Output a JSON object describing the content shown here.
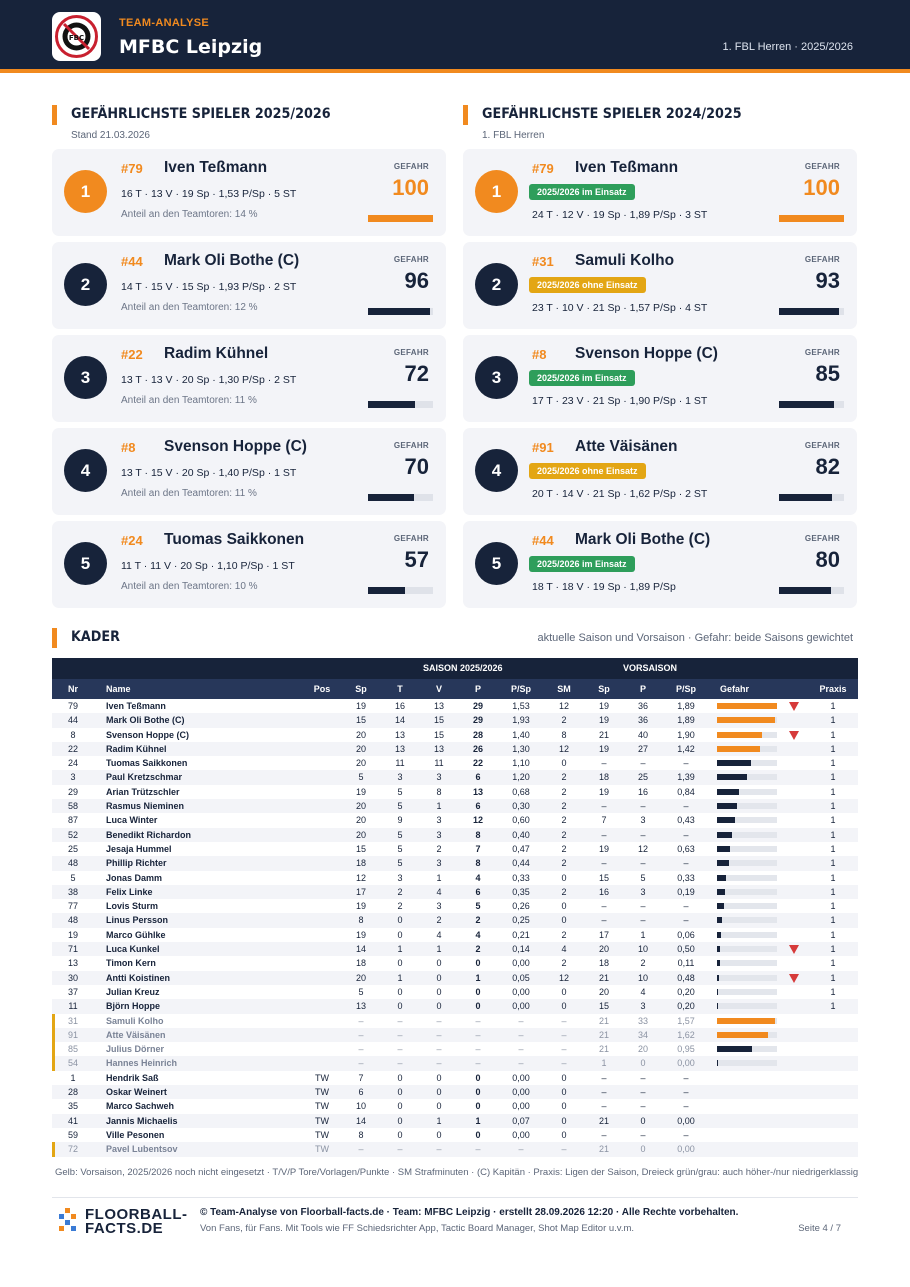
{
  "header": {
    "subtitle": "TEAM-ANALYSE",
    "team": "MFBC Leipzig",
    "league": "1. FBL Herren · 2025/2026",
    "logo_text": "MFBC"
  },
  "left_section": {
    "title": "GEFÄHRLICHSTE SPIELER 2025/2026",
    "subtitle": "Stand 21.03.2026"
  },
  "right_section": {
    "title": "GEFÄHRLICHSTE SPIELER 2024/2025",
    "subtitle": "1. FBL Herren"
  },
  "danger_label": "GEFAHR",
  "left_cards": [
    {
      "rank": "1",
      "num": "#79",
      "name": "Iven Teßmann",
      "stats": "16 T · 13 V · 19 Sp · 1,53 P/Sp · 5 ST",
      "share": "Anteil an den Teamtoren: 14 %",
      "danger": "100",
      "fill": 1.0
    },
    {
      "rank": "2",
      "num": "#44",
      "name": "Mark Oli Bothe (C)",
      "stats": "14 T · 15 V · 15 Sp · 1,93 P/Sp · 2 ST",
      "share": "Anteil an den Teamtoren: 12 %",
      "danger": "96",
      "fill": 0.96
    },
    {
      "rank": "3",
      "num": "#22",
      "name": "Radim Kühnel",
      "stats": "13 T · 13 V · 20 Sp · 1,30 P/Sp · 2 ST",
      "share": "Anteil an den Teamtoren: 11 %",
      "danger": "72",
      "fill": 0.72
    },
    {
      "rank": "4",
      "num": "#8",
      "name": "Svenson Hoppe (C)",
      "stats": "13 T · 15 V · 20 Sp · 1,40 P/Sp · 1 ST",
      "share": "Anteil an den Teamtoren: 11 %",
      "danger": "70",
      "fill": 0.7
    },
    {
      "rank": "5",
      "num": "#24",
      "name": "Tuomas Saikkonen",
      "stats": "11 T · 11 V · 20 Sp · 1,10 P/Sp · 1 ST",
      "share": "Anteil an den Teamtoren: 10 %",
      "danger": "57",
      "fill": 0.57
    }
  ],
  "right_cards": [
    {
      "rank": "1",
      "num": "#79",
      "name": "Iven Teßmann",
      "badge": "2025/2026 im Einsatz",
      "badge_color": "green",
      "stats": "24 T · 12 V · 19 Sp · 1,89 P/Sp · 3 ST",
      "danger": "100",
      "fill": 1.0
    },
    {
      "rank": "2",
      "num": "#31",
      "name": "Samuli Kolho",
      "badge": "2025/2026 ohne Einsatz",
      "badge_color": "amber",
      "stats": "23 T · 10 V · 21 Sp · 1,57 P/Sp · 4 ST",
      "danger": "93",
      "fill": 0.93
    },
    {
      "rank": "3",
      "num": "#8",
      "name": "Svenson Hoppe (C)",
      "badge": "2025/2026 im Einsatz",
      "badge_color": "green",
      "stats": "17 T · 23 V · 21 Sp · 1,90 P/Sp · 1 ST",
      "danger": "85",
      "fill": 0.85
    },
    {
      "rank": "4",
      "num": "#91",
      "name": "Atte Väisänen",
      "badge": "2025/2026 ohne Einsatz",
      "badge_color": "amber",
      "stats": "20 T · 14 V · 21 Sp · 1,62 P/Sp · 2 ST",
      "danger": "82",
      "fill": 0.82
    },
    {
      "rank": "5",
      "num": "#44",
      "name": "Mark Oli Bothe (C)",
      "badge": "2025/2026 im Einsatz",
      "badge_color": "green",
      "stats": "18 T · 18 V · 19 Sp · 1,89 P/Sp",
      "danger": "80",
      "fill": 0.8
    }
  ],
  "kader": {
    "title": "KADER",
    "note": "aktuelle Saison und Vorsaison · Gefahr: beide Saisons gewichtet",
    "group_season": "SAISON 2025/2026",
    "group_prev": "VORSAISON",
    "columns": [
      "Nr",
      "Name",
      "Pos",
      "Sp",
      "T",
      "V",
      "P",
      "P/Sp",
      "SM",
      "Sp",
      "P",
      "P/Sp",
      "Gefahr",
      "Praxis"
    ],
    "rows": [
      {
        "nr": "79",
        "name": "Iven Teßmann",
        "pos": "",
        "sp": "19",
        "t": "16",
        "v": "13",
        "p": "29",
        "psp": "1,53",
        "sm": "12",
        "vsp": "19",
        "vp": "36",
        "vpsp": "1,89",
        "g": 1.0,
        "go": true,
        "tri": true,
        "praxis": "1",
        "vs": false
      },
      {
        "nr": "44",
        "name": "Mark Oli Bothe (C)",
        "pos": "",
        "sp": "15",
        "t": "14",
        "v": "15",
        "p": "29",
        "psp": "1,93",
        "sm": "2",
        "vsp": "19",
        "vp": "36",
        "vpsp": "1,89",
        "g": 0.96,
        "go": true,
        "tri": false,
        "praxis": "1",
        "vs": false
      },
      {
        "nr": "8",
        "name": "Svenson Hoppe (C)",
        "pos": "",
        "sp": "20",
        "t": "13",
        "v": "15",
        "p": "28",
        "psp": "1,40",
        "sm": "8",
        "vsp": "21",
        "vp": "40",
        "vpsp": "1,90",
        "g": 0.75,
        "go": true,
        "tri": true,
        "praxis": "1",
        "vs": false
      },
      {
        "nr": "22",
        "name": "Radim Kühnel",
        "pos": "",
        "sp": "20",
        "t": "13",
        "v": "13",
        "p": "26",
        "psp": "1,30",
        "sm": "12",
        "vsp": "19",
        "vp": "27",
        "vpsp": "1,42",
        "g": 0.72,
        "go": true,
        "tri": false,
        "praxis": "1",
        "vs": false
      },
      {
        "nr": "24",
        "name": "Tuomas Saikkonen",
        "pos": "",
        "sp": "20",
        "t": "11",
        "v": "11",
        "p": "22",
        "psp": "1,10",
        "sm": "0",
        "vsp": "–",
        "vp": "–",
        "vpsp": "–",
        "g": 0.57,
        "go": false,
        "tri": false,
        "praxis": "1",
        "vs": false
      },
      {
        "nr": "3",
        "name": "Paul Kretzschmar",
        "pos": "",
        "sp": "5",
        "t": "3",
        "v": "3",
        "p": "6",
        "psp": "1,20",
        "sm": "2",
        "vsp": "18",
        "vp": "25",
        "vpsp": "1,39",
        "g": 0.5,
        "go": false,
        "tri": false,
        "praxis": "1",
        "vs": false
      },
      {
        "nr": "29",
        "name": "Arian Trützschler",
        "pos": "",
        "sp": "19",
        "t": "5",
        "v": "8",
        "p": "13",
        "psp": "0,68",
        "sm": "2",
        "vsp": "19",
        "vp": "16",
        "vpsp": "0,84",
        "g": 0.37,
        "go": false,
        "tri": false,
        "praxis": "1",
        "vs": false
      },
      {
        "nr": "58",
        "name": "Rasmus Nieminen",
        "pos": "",
        "sp": "20",
        "t": "5",
        "v": "1",
        "p": "6",
        "psp": "0,30",
        "sm": "2",
        "vsp": "–",
        "vp": "–",
        "vpsp": "–",
        "g": 0.33,
        "go": false,
        "tri": false,
        "praxis": "1",
        "vs": false
      },
      {
        "nr": "87",
        "name": "Luca Winter",
        "pos": "",
        "sp": "20",
        "t": "9",
        "v": "3",
        "p": "12",
        "psp": "0,60",
        "sm": "2",
        "vsp": "7",
        "vp": "3",
        "vpsp": "0,43",
        "g": 0.3,
        "go": false,
        "tri": false,
        "praxis": "1",
        "vs": false
      },
      {
        "nr": "52",
        "name": "Benedikt Richardon",
        "pos": "",
        "sp": "20",
        "t": "5",
        "v": "3",
        "p": "8",
        "psp": "0,40",
        "sm": "2",
        "vsp": "–",
        "vp": "–",
        "vpsp": "–",
        "g": 0.25,
        "go": false,
        "tri": false,
        "praxis": "1",
        "vs": false
      },
      {
        "nr": "25",
        "name": "Jesaja Hummel",
        "pos": "",
        "sp": "15",
        "t": "5",
        "v": "2",
        "p": "7",
        "psp": "0,47",
        "sm": "2",
        "vsp": "19",
        "vp": "12",
        "vpsp": "0,63",
        "g": 0.22,
        "go": false,
        "tri": false,
        "praxis": "1",
        "vs": false
      },
      {
        "nr": "48",
        "name": "Phillip Richter",
        "pos": "",
        "sp": "18",
        "t": "5",
        "v": "3",
        "p": "8",
        "psp": "0,44",
        "sm": "2",
        "vsp": "–",
        "vp": "–",
        "vpsp": "–",
        "g": 0.2,
        "go": false,
        "tri": false,
        "praxis": "1",
        "vs": false
      },
      {
        "nr": "5",
        "name": "Jonas Damm",
        "pos": "",
        "sp": "12",
        "t": "3",
        "v": "1",
        "p": "4",
        "psp": "0,33",
        "sm": "0",
        "vsp": "15",
        "vp": "5",
        "vpsp": "0,33",
        "g": 0.15,
        "go": false,
        "tri": false,
        "praxis": "1",
        "vs": false
      },
      {
        "nr": "38",
        "name": "Felix Linke",
        "pos": "",
        "sp": "17",
        "t": "2",
        "v": "4",
        "p": "6",
        "psp": "0,35",
        "sm": "2",
        "vsp": "16",
        "vp": "3",
        "vpsp": "0,19",
        "g": 0.14,
        "go": false,
        "tri": false,
        "praxis": "1",
        "vs": false
      },
      {
        "nr": "77",
        "name": "Lovis Sturm",
        "pos": "",
        "sp": "19",
        "t": "2",
        "v": "3",
        "p": "5",
        "psp": "0,26",
        "sm": "0",
        "vsp": "–",
        "vp": "–",
        "vpsp": "–",
        "g": 0.11,
        "go": false,
        "tri": false,
        "praxis": "1",
        "vs": false
      },
      {
        "nr": "48",
        "name": "Linus Persson",
        "pos": "",
        "sp": "8",
        "t": "0",
        "v": "2",
        "p": "2",
        "psp": "0,25",
        "sm": "0",
        "vsp": "–",
        "vp": "–",
        "vpsp": "–",
        "g": 0.09,
        "go": false,
        "tri": false,
        "praxis": "1",
        "vs": false
      },
      {
        "nr": "19",
        "name": "Marco Gühlke",
        "pos": "",
        "sp": "19",
        "t": "0",
        "v": "4",
        "p": "4",
        "psp": "0,21",
        "sm": "2",
        "vsp": "17",
        "vp": "1",
        "vpsp": "0,06",
        "g": 0.07,
        "go": false,
        "tri": false,
        "praxis": "1",
        "vs": false
      },
      {
        "nr": "71",
        "name": "Luca Kunkel",
        "pos": "",
        "sp": "14",
        "t": "1",
        "v": "1",
        "p": "2",
        "psp": "0,14",
        "sm": "4",
        "vsp": "20",
        "vp": "10",
        "vpsp": "0,50",
        "g": 0.05,
        "go": false,
        "tri": true,
        "praxis": "1",
        "vs": false
      },
      {
        "nr": "13",
        "name": "Timon Kern",
        "pos": "",
        "sp": "18",
        "t": "0",
        "v": "0",
        "p": "0",
        "psp": "0,00",
        "sm": "2",
        "vsp": "18",
        "vp": "2",
        "vpsp": "0,11",
        "g": 0.05,
        "go": false,
        "tri": false,
        "praxis": "1",
        "vs": false
      },
      {
        "nr": "30",
        "name": "Antti Koistinen",
        "pos": "",
        "sp": "20",
        "t": "1",
        "v": "0",
        "p": "1",
        "psp": "0,05",
        "sm": "12",
        "vsp": "21",
        "vp": "10",
        "vpsp": "0,48",
        "g": 0.04,
        "go": false,
        "tri": true,
        "praxis": "1",
        "vs": false
      },
      {
        "nr": "37",
        "name": "Julian Kreuz",
        "pos": "",
        "sp": "5",
        "t": "0",
        "v": "0",
        "p": "0",
        "psp": "0,00",
        "sm": "0",
        "vsp": "20",
        "vp": "4",
        "vpsp": "0,20",
        "g": 0.02,
        "go": false,
        "tri": false,
        "praxis": "1",
        "vs": false
      },
      {
        "nr": "11",
        "name": "Björn Hoppe",
        "pos": "",
        "sp": "13",
        "t": "0",
        "v": "0",
        "p": "0",
        "psp": "0,00",
        "sm": "0",
        "vsp": "15",
        "vp": "3",
        "vpsp": "0,20",
        "g": 0.0,
        "go": false,
        "tri": false,
        "praxis": "1",
        "vs": false
      },
      {
        "nr": "31",
        "name": "Samuli Kolho",
        "pos": "",
        "sp": "–",
        "t": "–",
        "v": "–",
        "p": "–",
        "psp": "–",
        "sm": "–",
        "vsp": "21",
        "vp": "33",
        "vpsp": "1,57",
        "g": 0.96,
        "go": true,
        "tri": false,
        "praxis": "",
        "vs": true
      },
      {
        "nr": "91",
        "name": "Atte Väisänen",
        "pos": "",
        "sp": "–",
        "t": "–",
        "v": "–",
        "p": "–",
        "psp": "–",
        "sm": "–",
        "vsp": "21",
        "vp": "34",
        "vpsp": "1,62",
        "g": 0.85,
        "go": true,
        "tri": false,
        "praxis": "",
        "vs": true
      },
      {
        "nr": "85",
        "name": "Julius Dörner",
        "pos": "",
        "sp": "–",
        "t": "–",
        "v": "–",
        "p": "–",
        "psp": "–",
        "sm": "–",
        "vsp": "21",
        "vp": "20",
        "vpsp": "0,95",
        "g": 0.58,
        "go": false,
        "tri": false,
        "praxis": "",
        "vs": true
      },
      {
        "nr": "54",
        "name": "Hannes Heinrich",
        "pos": "",
        "sp": "–",
        "t": "–",
        "v": "–",
        "p": "–",
        "psp": "–",
        "sm": "–",
        "vsp": "1",
        "vp": "0",
        "vpsp": "0,00",
        "g": 0.0,
        "go": false,
        "tri": false,
        "praxis": "",
        "vs": true
      },
      {
        "nr": "1",
        "name": "Hendrik Saß",
        "pos": "TW",
        "sp": "7",
        "t": "0",
        "v": "0",
        "p": "0",
        "psp": "0,00",
        "sm": "0",
        "vsp": "–",
        "vp": "–",
        "vpsp": "–",
        "g": null,
        "go": false,
        "tri": false,
        "praxis": "",
        "vs": false
      },
      {
        "nr": "28",
        "name": "Oskar Weinert",
        "pos": "TW",
        "sp": "6",
        "t": "0",
        "v": "0",
        "p": "0",
        "psp": "0,00",
        "sm": "0",
        "vsp": "–",
        "vp": "–",
        "vpsp": "–",
        "g": null,
        "go": false,
        "tri": false,
        "praxis": "",
        "vs": false
      },
      {
        "nr": "35",
        "name": "Marco Sachweh",
        "pos": "TW",
        "sp": "10",
        "t": "0",
        "v": "0",
        "p": "0",
        "psp": "0,00",
        "sm": "0",
        "vsp": "–",
        "vp": "–",
        "vpsp": "–",
        "g": null,
        "go": false,
        "tri": false,
        "praxis": "",
        "vs": false
      },
      {
        "nr": "41",
        "name": "Jannis Michaelis",
        "pos": "TW",
        "sp": "14",
        "t": "0",
        "v": "1",
        "p": "1",
        "psp": "0,07",
        "sm": "0",
        "vsp": "21",
        "vp": "0",
        "vpsp": "0,00",
        "g": null,
        "go": false,
        "tri": false,
        "praxis": "",
        "vs": false
      },
      {
        "nr": "59",
        "name": "Ville Pesonen",
        "pos": "TW",
        "sp": "8",
        "t": "0",
        "v": "0",
        "p": "0",
        "psp": "0,00",
        "sm": "0",
        "vsp": "–",
        "vp": "–",
        "vpsp": "–",
        "g": null,
        "go": false,
        "tri": false,
        "praxis": "",
        "vs": false
      },
      {
        "nr": "72",
        "name": "Pavel Lubentsov",
        "pos": "TW",
        "sp": "–",
        "t": "–",
        "v": "–",
        "p": "–",
        "psp": "–",
        "sm": "–",
        "vsp": "21",
        "vp": "0",
        "vpsp": "0,00",
        "g": null,
        "go": false,
        "tri": false,
        "praxis": "",
        "vs": true
      }
    ]
  },
  "footer": {
    "legend": "Gelb: Vorsaison, 2025/2026 noch nicht eingesetzt · T/V/P Tore/Vorlagen/Punkte · SM Strafminuten · (C) Kapitän · Praxis: Ligen der Saison, Dreieck grün/grau: auch höher-/nur niedrigerklassig",
    "brand_line1": "FLOORBALL-",
    "brand_line2": "FACTS.DE",
    "copyright": "© Team-Analyse von Floorball-facts.de · Team: MFBC Leipzig · erstellt 28.09.2026 12:20 · Alle Rechte vorbehalten.",
    "tagline": "Von Fans, für Fans. Mit Tools wie FF Schiedsrichter App, Tactic Board Manager, Shot Map Editor u.v.m.",
    "page": "Seite 4 / 7"
  },
  "colors": {
    "navy": "#17233a",
    "orange": "#f18a1f",
    "green": "#2e9e5b",
    "amber": "#e3a614",
    "red": "#d63a3a"
  }
}
